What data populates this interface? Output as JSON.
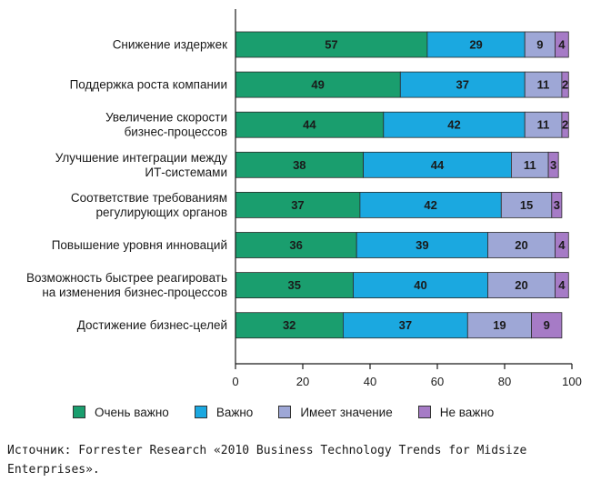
{
  "chart_data": {
    "type": "bar",
    "orientation": "horizontal",
    "stacked": true,
    "categories": [
      [
        "Снижение издержек"
      ],
      [
        "Поддержка роста компании"
      ],
      [
        "Увеличение скорости",
        "бизнес-процессов"
      ],
      [
        "Улучшение интеграции между",
        "ИТ-системами"
      ],
      [
        "Соответствие требованиям",
        "регулирующих органов"
      ],
      [
        "Повышение уровня инноваций"
      ],
      [
        "Возможность быстрее реагировать",
        "на изменения бизнес-процессов"
      ],
      [
        "Достижение бизнес-целей"
      ]
    ],
    "series": [
      {
        "name": "Очень важно",
        "color": "#1a9e6e",
        "values": [
          57,
          49,
          44,
          38,
          37,
          36,
          35,
          32
        ]
      },
      {
        "name": "Важно",
        "color": "#1ba8e0",
        "values": [
          29,
          37,
          42,
          44,
          42,
          39,
          40,
          37
        ]
      },
      {
        "name": "Имеет значение",
        "color": "#9ea7d6",
        "values": [
          9,
          11,
          11,
          11,
          15,
          20,
          20,
          19
        ]
      },
      {
        "name": "Не важно",
        "color": "#a67bc6",
        "values": [
          4,
          2,
          2,
          3,
          3,
          4,
          4,
          9
        ]
      }
    ],
    "xlim": [
      0,
      100
    ],
    "xticks": [
      0,
      20,
      40,
      60,
      80,
      100
    ],
    "grid": false,
    "legend_position": "bottom"
  },
  "source_text": "Источник: Forrester Research «2010 Business Technology Trends for Midsize Enterprises»."
}
